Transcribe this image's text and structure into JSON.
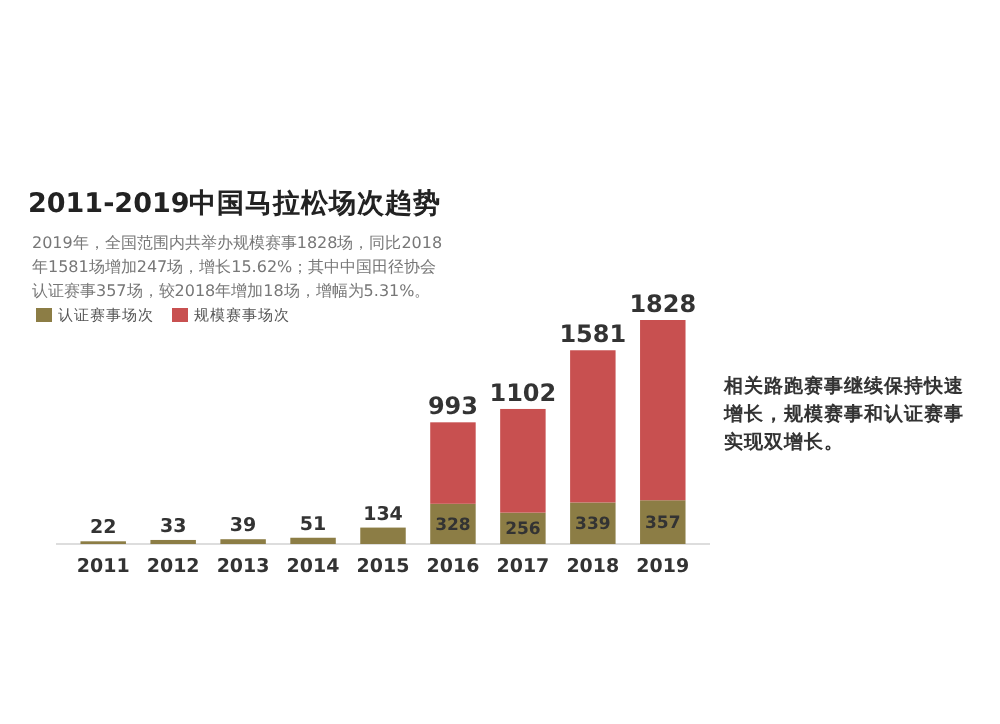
{
  "chart_data": {
    "type": "bar",
    "title": "2011-2019中国马拉松场次趋势",
    "subtitle": "2019年，全国范围内共举办规模赛事1828场，同比2018年1581场增加247场，增长15.62%；其中中国田径协会认证赛事357场，较2018年增加18场，增幅为5.31%。",
    "annotations": [
      "相关路跑赛事继续保持快速增长，规模赛事和认证赛事实现双增长。"
    ],
    "categories": [
      "2011",
      "2012",
      "2013",
      "2014",
      "2015",
      "2016",
      "2017",
      "2018",
      "2019"
    ],
    "stacked": true,
    "legend": "top left",
    "series": [
      {
        "name": "认证赛事场次",
        "color": "#8c7d45",
        "values": [
          22,
          33,
          39,
          51,
          134,
          328,
          256,
          339,
          357
        ],
        "value_labels": [
          null,
          null,
          null,
          null,
          null,
          "328",
          "256",
          "339",
          "357"
        ]
      },
      {
        "name": "规模赛事场次",
        "color": "#c85050",
        "values": [
          null,
          null,
          null,
          null,
          null,
          665,
          846,
          1242,
          1471
        ]
      }
    ],
    "totals": [
      "22",
      "33",
      "39",
      "51",
      "134",
      "993",
      "1102",
      "1581",
      "1828"
    ]
  }
}
